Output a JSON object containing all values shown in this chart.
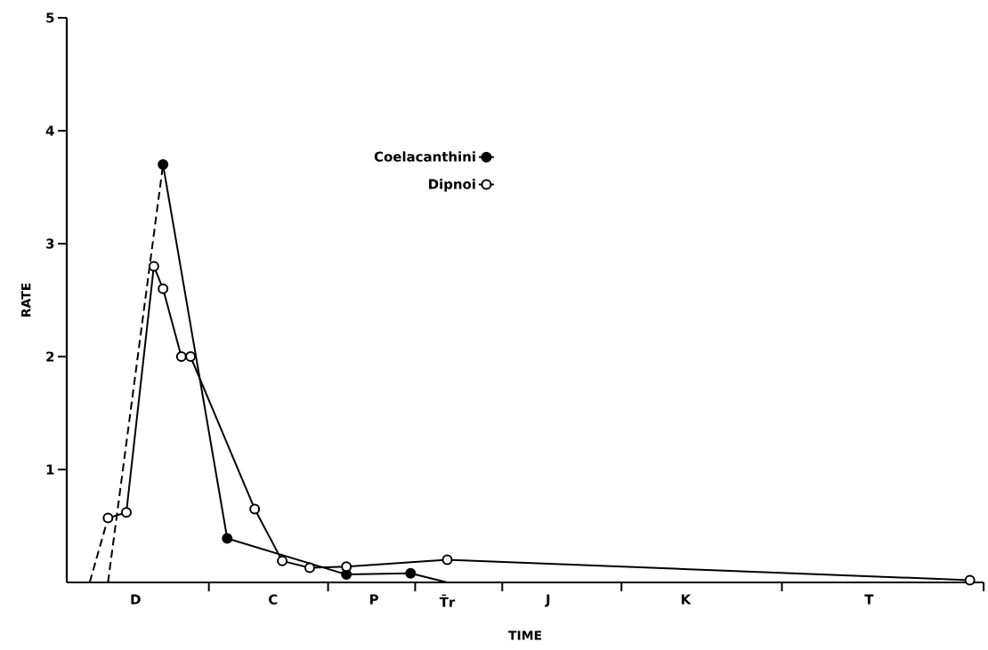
{
  "chart_data": {
    "type": "line",
    "xlabel": "TIME",
    "ylabel": "RATE",
    "categories": [
      null,
      null,
      null,
      null,
      null,
      null,
      null,
      "D",
      null,
      null,
      null,
      null,
      null,
      null,
      null,
      null,
      null,
      null,
      null,
      null,
      null,
      null,
      "C",
      null,
      null,
      null,
      null,
      null,
      null,
      null,
      null,
      null,
      null,
      "P",
      null,
      null,
      null,
      null,
      null,
      null,
      null,
      "T̄r",
      null,
      null,
      null,
      null,
      null,
      null,
      null,
      null,
      null,
      null,
      "J",
      null,
      null,
      null,
      null,
      null,
      null,
      null,
      null,
      null,
      null,
      null,
      null,
      null,
      null,
      "K",
      null,
      null,
      null,
      null,
      null,
      null,
      null,
      null,
      null,
      null,
      null,
      null,
      null,
      null,
      null,
      null,
      null,
      null,
      null,
      "T",
      null,
      null,
      null,
      null,
      null,
      null,
      null,
      null,
      null,
      null,
      null,
      null
    ],
    "ylim": [
      0,
      5
    ],
    "yticks": [
      1,
      2,
      3,
      4,
      5
    ],
    "legend": "top",
    "series": [
      {
        "name": "Coelacanthini",
        "color": "#000000",
        "marker": "circle",
        "line_style": "solid",
        "values": [
          null,
          null,
          null,
          null,
          null,
          null,
          null,
          null,
          null,
          null,
          3.7,
          null,
          null,
          null,
          null,
          null,
          null,
          0.39,
          null,
          null,
          null,
          null,
          null,
          null,
          null,
          null,
          null,
          null,
          null,
          null,
          0.07,
          null,
          null,
          null,
          null,
          null,
          null,
          0.08,
          null,
          null,
          null,
          null,
          null,
          null,
          null,
          null,
          null,
          null,
          null,
          null,
          null,
          null,
          null,
          null,
          null,
          null,
          null,
          null,
          null,
          null,
          null,
          null,
          null,
          null,
          null,
          null,
          null,
          null,
          null,
          null,
          null,
          null,
          null,
          null,
          null,
          null,
          null,
          null,
          null,
          null,
          null,
          null,
          null,
          null,
          null,
          null,
          null,
          null,
          null,
          null,
          null,
          null,
          null,
          null,
          null,
          null,
          null,
          null,
          null,
          null
        ]
      },
      {
        "name": "Dipnoi",
        "color": "#000000",
        "marker": "circle open",
        "line_style": "solid",
        "values": [
          null,
          null,
          null,
          null,
          0.57,
          null,
          0.62,
          null,
          null,
          2.8,
          2.6,
          null,
          2.0,
          2.0,
          null,
          null,
          null,
          null,
          null,
          null,
          0.65,
          null,
          null,
          0.19,
          null,
          null,
          0.13,
          null,
          null,
          null,
          0.14,
          null,
          null,
          null,
          null,
          null,
          null,
          null,
          null,
          null,
          null,
          0.2,
          null,
          null,
          null,
          null,
          null,
          null,
          null,
          null,
          null,
          null,
          null,
          null,
          null,
          null,
          null,
          null,
          null,
          null,
          null,
          null,
          null,
          null,
          null,
          null,
          null,
          null,
          null,
          null,
          null,
          null,
          null,
          null,
          null,
          null,
          null,
          null,
          null,
          null,
          null,
          null,
          null,
          null,
          null,
          null,
          null,
          null,
          null,
          null,
          null,
          null,
          null,
          null,
          null,
          null,
          null,
          null,
          0.02,
          null
        ]
      },
      {
        "color": "#000000",
        "marker": "none",
        "line_style": "dashed",
        "values": [
          null,
          null,
          null,
          null,
          0,
          null,
          null,
          null,
          null,
          null,
          3.7,
          null,
          null,
          null,
          null,
          null,
          null,
          null,
          null,
          null,
          null,
          null,
          null,
          null,
          null,
          null,
          null,
          null,
          null,
          null,
          null,
          null,
          null,
          null,
          null,
          null,
          null,
          null,
          null,
          null,
          null,
          null,
          null,
          null,
          null,
          null,
          null,
          null,
          null,
          null,
          null,
          null,
          null,
          null,
          null,
          null,
          null,
          null,
          null,
          null,
          null,
          null,
          null,
          null,
          null,
          null,
          null,
          null,
          null,
          null,
          null,
          null,
          null,
          null,
          null,
          null,
          null,
          null,
          null,
          null,
          null,
          null,
          null,
          null,
          null,
          null,
          null,
          null,
          null,
          null,
          null,
          null,
          null,
          null,
          null,
          null,
          null,
          null,
          null,
          null
        ]
      },
      {
        "color": "#000000",
        "marker": "none",
        "line_style": "solid",
        "values": [
          null,
          null,
          null,
          null,
          null,
          null,
          null,
          null,
          null,
          null,
          null,
          null,
          null,
          null,
          null,
          null,
          null,
          null,
          null,
          null,
          null,
          null,
          null,
          null,
          null,
          null,
          null,
          null,
          null,
          null,
          null,
          null,
          null,
          null,
          null,
          null,
          null,
          0.08,
          null,
          null,
          null,
          0,
          null,
          null,
          null,
          null,
          null,
          null,
          null,
          null,
          null,
          null,
          null,
          null,
          null,
          null,
          null,
          null,
          null,
          null,
          null,
          null,
          null,
          null,
          null,
          null,
          null,
          null,
          null,
          null,
          null,
          null,
          null,
          null,
          null,
          null,
          null,
          null,
          null,
          null,
          null,
          null,
          null,
          null,
          null,
          null,
          null,
          null,
          null,
          null,
          null,
          null,
          null,
          null,
          null,
          null,
          null,
          null,
          null,
          null
        ]
      },
      {
        "color": "#000000",
        "marker": "none",
        "line_style": "dashed",
        "values": [
          null,
          null,
          0,
          null,
          0.57,
          null,
          null,
          null,
          null,
          null,
          null,
          null,
          null,
          null,
          null,
          null,
          null,
          null,
          null,
          null,
          null,
          null,
          null,
          null,
          null,
          null,
          null,
          null,
          null,
          null,
          null,
          null,
          null,
          null,
          null,
          null,
          null,
          null,
          null,
          null,
          null,
          null,
          null,
          null,
          null,
          null,
          null,
          null,
          null,
          null,
          null,
          null,
          null,
          null,
          null,
          null,
          null,
          null,
          null,
          null,
          null,
          null,
          null,
          null,
          null,
          null,
          null,
          null,
          null,
          null,
          null,
          null,
          null,
          null,
          null,
          null,
          null,
          null,
          null,
          null,
          null,
          null,
          null,
          null,
          null,
          null,
          null,
          null,
          null,
          null,
          null,
          null,
          null,
          null,
          null,
          null,
          null,
          null,
          null,
          null
        ]
      }
    ]
  }
}
